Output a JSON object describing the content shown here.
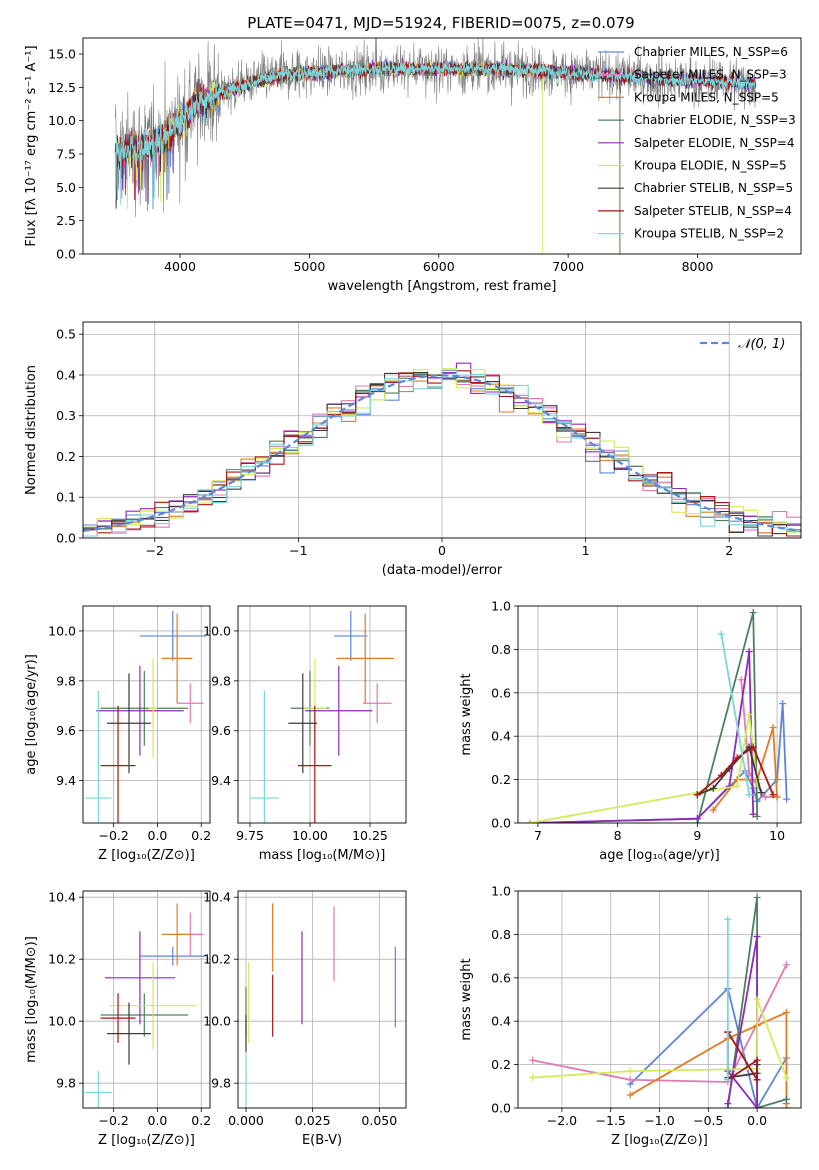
{
  "title": "PLATE=0471, MJD=51924, FIBERID=0075, z=0.079",
  "colors": {
    "chabrier_miles": "#5f86d6",
    "salpeter_miles": "#e07ab3",
    "kroupa_miles": "#e07b26",
    "chabrier_elodie": "#4f7f5f",
    "salpeter_elodie": "#8e2ab8",
    "kroupa_elodie": "#d4ea5a",
    "chabrier_stelib": "#3b3b3b",
    "salpeter_stelib": "#a81515",
    "kroupa_stelib": "#7ad6d9",
    "data": "#808080"
  },
  "chart_data": [
    {
      "id": "spectrum",
      "type": "line",
      "xlabel": "wavelength [Angstrom, rest frame]",
      "ylabel": "Flux [fλ 10⁻¹⁷ erg cm⁻² s⁻¹ A⁻¹]",
      "xlim": [
        3250,
        8800
      ],
      "ylim": [
        0,
        16.2
      ],
      "xticks": [
        4000,
        5000,
        6000,
        7000,
        8000
      ],
      "yticks": [
        0.0,
        2.5,
        5.0,
        7.5,
        10.0,
        12.5,
        15.0
      ],
      "grid": false,
      "legend_position": "upper right",
      "legend": [
        {
          "label": "Chabrier MILES, N_SSP=6",
          "color": "#5f86d6"
        },
        {
          "label": "Salpeter MILES, N_SSP=3",
          "color": "#e07ab3"
        },
        {
          "label": "Kroupa MILES, N_SSP=5",
          "color": "#e07b26"
        },
        {
          "label": "Chabrier ELODIE, N_SSP=3",
          "color": "#4f7f5f"
        },
        {
          "label": "Salpeter ELODIE, N_SSP=4",
          "color": "#8e2ab8"
        },
        {
          "label": "Kroupa ELODIE, N_SSP=5",
          "color": "#d4ea5a"
        },
        {
          "label": "Chabrier STELIB, N_SSP=5",
          "color": "#3b3b3b"
        },
        {
          "label": "Salpeter STELIB, N_SSP=4",
          "color": "#a81515"
        },
        {
          "label": "Kroupa STELIB, N_SSP=2",
          "color": "#7ad6d9"
        }
      ],
      "continuum": {
        "x": [
          3500,
          3600,
          3700,
          3800,
          3900,
          4000,
          4100,
          4200,
          4400,
          4600,
          4800,
          5000,
          5200,
          5400,
          5600,
          5800,
          6000,
          6200,
          6400,
          6600,
          6800,
          7000,
          7200,
          7400,
          7600,
          7800,
          8000,
          8200,
          8400
        ],
        "y": [
          7.5,
          7.8,
          8.0,
          8.3,
          9.0,
          10.0,
          11.0,
          11.6,
          12.4,
          13.0,
          13.4,
          13.6,
          13.7,
          13.8,
          13.9,
          13.9,
          13.9,
          13.9,
          13.9,
          13.8,
          13.8,
          13.6,
          13.5,
          13.3,
          13.2,
          13.1,
          13.0,
          12.9,
          12.8
        ]
      }
    },
    {
      "id": "residual_hist",
      "type": "line",
      "xlabel": "(data-model)/error",
      "ylabel": "Normed distribution",
      "xlim": [
        -2.5,
        2.5
      ],
      "ylim": [
        0,
        0.53
      ],
      "xticks": [
        -2,
        -1,
        0,
        1,
        2
      ],
      "yticks": [
        0.0,
        0.1,
        0.2,
        0.3,
        0.4,
        0.5
      ],
      "grid": true,
      "legend_position": "upper right",
      "legend_label": "𝒩(0, 1)",
      "bin_width": 0.1
    },
    {
      "id": "age_vs_Z",
      "type": "scatter",
      "xlabel": "Z [log₁₀(Z/Z⊙)]",
      "ylabel": "age  [log₁₀(age/yr)]",
      "xlim": [
        -0.34,
        0.24
      ],
      "ylim": [
        9.23,
        10.1
      ],
      "xticks": [
        -0.2,
        0.0,
        0.2
      ],
      "yticks": [
        9.4,
        9.6,
        9.8,
        10.0
      ],
      "grid": true,
      "points": [
        {
          "x": 0.07,
          "xerr": 0.15,
          "y": 9.98,
          "yerr": 0.1,
          "color": "#5f86d6"
        },
        {
          "x": 0.15,
          "xerr": 0.06,
          "y": 9.71,
          "yerr": 0.08,
          "color": "#e07ab3"
        },
        {
          "x": 0.09,
          "xerr": 0.07,
          "y": 9.89,
          "yerr": 0.18,
          "color": "#e07b26"
        },
        {
          "x": -0.06,
          "xerr": 0.2,
          "y": 9.69,
          "yerr": 0.15,
          "color": "#4f7f5f"
        },
        {
          "x": -0.08,
          "xerr": 0.2,
          "y": 9.68,
          "yerr": 0.18,
          "color": "#8e2ab8"
        },
        {
          "x": -0.02,
          "xerr": 0.02,
          "y": 9.69,
          "yerr": 0.2,
          "color": "#d4ea5a"
        },
        {
          "x": -0.13,
          "xerr": 0.1,
          "y": 9.63,
          "yerr": 0.2,
          "color": "#3b3b3b"
        },
        {
          "x": -0.18,
          "xerr": 0.08,
          "y": 9.46,
          "yerr": 0.24,
          "color": "#a81515"
        },
        {
          "x": -0.27,
          "xerr": 0.06,
          "y": 9.33,
          "yerr": 0.43,
          "color": "#7ad6d9"
        }
      ]
    },
    {
      "id": "age_vs_mass",
      "type": "scatter",
      "xlabel": "mass [log₁₀(M/M⊙)]",
      "ylabel": "",
      "xlim": [
        9.7,
        10.4
      ],
      "ylim": [
        9.23,
        10.1
      ],
      "xticks": [
        9.75,
        10.0,
        10.25
      ],
      "yticks": [
        9.4,
        9.6,
        9.8,
        10.0
      ],
      "grid": true,
      "points": [
        {
          "x": 10.17,
          "xerr": 0.07,
          "y": 9.98,
          "yerr": 0.1,
          "color": "#5f86d6"
        },
        {
          "x": 10.28,
          "xerr": 0.06,
          "y": 9.71,
          "yerr": 0.08,
          "color": "#e07ab3"
        },
        {
          "x": 10.23,
          "xerr": 0.12,
          "y": 9.89,
          "yerr": 0.18,
          "color": "#e07b26"
        },
        {
          "x": 10.0,
          "xerr": 0.08,
          "y": 9.69,
          "yerr": 0.15,
          "color": "#4f7f5f"
        },
        {
          "x": 10.12,
          "xerr": 0.14,
          "y": 9.68,
          "yerr": 0.18,
          "color": "#8e2ab8"
        },
        {
          "x": 10.02,
          "xerr": 0.05,
          "y": 9.69,
          "yerr": 0.2,
          "color": "#d4ea5a"
        },
        {
          "x": 9.97,
          "xerr": 0.06,
          "y": 9.63,
          "yerr": 0.2,
          "color": "#3b3b3b"
        },
        {
          "x": 10.02,
          "xerr": 0.07,
          "y": 9.46,
          "yerr": 0.24,
          "color": "#a81515"
        },
        {
          "x": 9.81,
          "xerr": 0.06,
          "y": 9.33,
          "yerr": 0.43,
          "color": "#7ad6d9"
        }
      ]
    },
    {
      "id": "massweight_vs_age",
      "type": "line",
      "xlabel": "age  [log₁₀(age/yr)]",
      "ylabel": "mass weight",
      "xlim": [
        6.75,
        10.3
      ],
      "ylim": [
        0,
        1.0
      ],
      "xticks": [
        7,
        8,
        9,
        10
      ],
      "yticks": [
        0.0,
        0.2,
        0.4,
        0.6,
        0.8,
        1.0
      ],
      "grid": true,
      "series": [
        {
          "color": "#5f86d6",
          "x": [
            6.9,
            9.0,
            9.6,
            9.7,
            9.75,
            10.0,
            10.07,
            10.12
          ],
          "y": [
            0.0,
            0.02,
            0.24,
            0.16,
            0.1,
            0.2,
            0.55,
            0.11
          ]
        },
        {
          "color": "#e07ab3",
          "x": [
            9.55,
            9.65,
            9.85,
            10.0
          ],
          "y": [
            0.66,
            0.23,
            0.12,
            0.12
          ]
        },
        {
          "color": "#e07b26",
          "x": [
            9.2,
            9.5,
            9.75,
            9.95,
            10.0
          ],
          "y": [
            0.06,
            0.2,
            0.2,
            0.44,
            0.12
          ]
        },
        {
          "color": "#4f7f5f",
          "x": [
            9.0,
            9.7,
            9.75
          ],
          "y": [
            0.0,
            0.97,
            0.03
          ]
        },
        {
          "color": "#8e2ab8",
          "x": [
            6.9,
            9.0,
            9.4,
            9.65,
            9.7
          ],
          "y": [
            0.0,
            0.02,
            0.17,
            0.79,
            0.04
          ]
        },
        {
          "color": "#d4ea5a",
          "x": [
            6.9,
            9.0,
            9.5,
            9.65,
            9.75
          ],
          "y": [
            0.0,
            0.14,
            0.17,
            0.5,
            0.18
          ]
        },
        {
          "color": "#3b3b3b",
          "x": [
            9.0,
            9.2,
            9.4,
            9.65,
            9.8
          ],
          "y": [
            0.13,
            0.16,
            0.25,
            0.35,
            0.14
          ]
        },
        {
          "color": "#a81515",
          "x": [
            9.0,
            9.3,
            9.5,
            9.7,
            9.95
          ],
          "y": [
            0.13,
            0.22,
            0.3,
            0.35,
            0.13
          ]
        },
        {
          "color": "#7ad6d9",
          "x": [
            9.3,
            9.65
          ],
          "y": [
            0.87,
            0.13
          ]
        }
      ]
    },
    {
      "id": "mass_vs_Z",
      "type": "scatter",
      "xlabel": "Z [log₁₀(Z/Z⊙)]",
      "ylabel": "mass [log₁₀(M/M⊙)]",
      "xlim": [
        -0.34,
        0.24
      ],
      "ylim": [
        9.72,
        10.42
      ],
      "xticks": [
        -0.2,
        0.0,
        0.2
      ],
      "yticks": [
        9.8,
        10.0,
        10.2,
        10.4
      ],
      "grid": true,
      "points": [
        {
          "x": 0.07,
          "xerr": 0.15,
          "y": 10.21,
          "yerr": 0.03,
          "color": "#5f86d6"
        },
        {
          "x": 0.15,
          "xerr": 0.06,
          "y": 10.28,
          "yerr": 0.07,
          "color": "#e07ab3"
        },
        {
          "x": 0.09,
          "xerr": 0.07,
          "y": 10.28,
          "yerr": 0.1,
          "color": "#e07b26"
        },
        {
          "x": -0.06,
          "xerr": 0.2,
          "y": 10.02,
          "yerr": 0.07,
          "color": "#4f7f5f"
        },
        {
          "x": -0.08,
          "xerr": 0.16,
          "y": 10.14,
          "yerr": 0.15,
          "color": "#8e2ab8"
        },
        {
          "x": -0.02,
          "xerr": 0.2,
          "y": 10.05,
          "yerr": 0.14,
          "color": "#d4ea5a"
        },
        {
          "x": -0.13,
          "xerr": 0.1,
          "y": 9.96,
          "yerr": 0.1,
          "color": "#3b3b3b"
        },
        {
          "x": -0.18,
          "xerr": 0.08,
          "y": 10.01,
          "yerr": 0.08,
          "color": "#a81515"
        },
        {
          "x": -0.27,
          "xerr": 0.06,
          "y": 9.77,
          "yerr": 0.07,
          "color": "#7ad6d9"
        }
      ]
    },
    {
      "id": "mass_vs_ebv",
      "type": "scatter",
      "xlabel": "E(B-V)",
      "ylabel": "",
      "xlim": [
        -0.003,
        0.06
      ],
      "ylim": [
        9.72,
        10.42
      ],
      "xticks": [
        0.0,
        0.025,
        0.05
      ],
      "yticks": [
        9.8,
        10.0,
        10.2,
        10.4
      ],
      "grid": true,
      "points": [
        {
          "x": 0.056,
          "y": 10.11,
          "yerr": 0.13,
          "color": "#5f86d6"
        },
        {
          "x": 0.033,
          "y": 10.25,
          "yerr": 0.12,
          "color": "#e07ab3"
        },
        {
          "x": 0.01,
          "y": 10.27,
          "yerr": 0.11,
          "color": "#e07b26"
        },
        {
          "x": 0.0,
          "y": 10.03,
          "yerr": 0.08,
          "color": "#4f7f5f"
        },
        {
          "x": 0.021,
          "y": 10.14,
          "yerr": 0.15,
          "color": "#8e2ab8"
        },
        {
          "x": 0.001,
          "y": 10.06,
          "yerr": 0.13,
          "color": "#d4ea5a"
        },
        {
          "x": 0.0,
          "y": 9.96,
          "yerr": 0.06,
          "color": "#3b3b3b"
        },
        {
          "x": 0.01,
          "y": 10.05,
          "yerr": 0.1,
          "color": "#a81515"
        },
        {
          "x": 0.0,
          "y": 9.8,
          "yerr": 0.09,
          "color": "#7ad6d9"
        }
      ]
    },
    {
      "id": "massweight_vs_Z",
      "type": "line",
      "xlabel": "Z [log₁₀(Z/Z⊙)]",
      "ylabel": "mass weight",
      "xlim": [
        -2.45,
        0.45
      ],
      "ylim": [
        0,
        1.0
      ],
      "xticks": [
        -2.0,
        -1.5,
        -1.0,
        -0.5,
        0.0
      ],
      "yticks": [
        0.0,
        0.2,
        0.4,
        0.6,
        0.8,
        1.0
      ],
      "grid": true,
      "series": [
        {
          "color": "#5f86d6",
          "x": [
            -1.3,
            -0.3,
            0.0,
            0.3,
            0.3
          ],
          "y": [
            0.11,
            0.55,
            0.0,
            0.23,
            0.02
          ]
        },
        {
          "color": "#e07ab3",
          "x": [
            -2.3,
            -1.3,
            -0.3,
            0.3
          ],
          "y": [
            0.22,
            0.13,
            0.12,
            0.66
          ]
        },
        {
          "color": "#e07b26",
          "x": [
            -1.3,
            -0.3,
            0.0,
            0.3,
            0.3
          ],
          "y": [
            0.06,
            0.32,
            0.38,
            0.44,
            0.0
          ]
        },
        {
          "color": "#4f7f5f",
          "x": [
            -0.3,
            0.0,
            0.0,
            0.3
          ],
          "y": [
            0.0,
            0.97,
            0.0,
            0.04
          ]
        },
        {
          "color": "#8e2ab8",
          "x": [
            -0.3,
            0.0,
            0.0,
            -0.3
          ],
          "y": [
            0.02,
            0.79,
            0.0,
            0.17
          ]
        },
        {
          "color": "#d4ea5a",
          "x": [
            -2.3,
            -1.3,
            0.0,
            0.0,
            0.3
          ],
          "y": [
            0.14,
            0.17,
            0.18,
            0.5,
            0.14
          ]
        },
        {
          "color": "#3b3b3b",
          "x": [
            -0.3,
            -0.3,
            0.0,
            0.0
          ],
          "y": [
            0.35,
            0.14,
            0.16,
            0.2
          ]
        },
        {
          "color": "#a81515",
          "x": [
            -0.3,
            0.0,
            0.0,
            -0.3
          ],
          "y": [
            0.35,
            0.13,
            0.22,
            0.13
          ]
        },
        {
          "color": "#7ad6d9",
          "x": [
            -0.3,
            -0.3
          ],
          "y": [
            0.87,
            0.13
          ]
        }
      ]
    }
  ]
}
